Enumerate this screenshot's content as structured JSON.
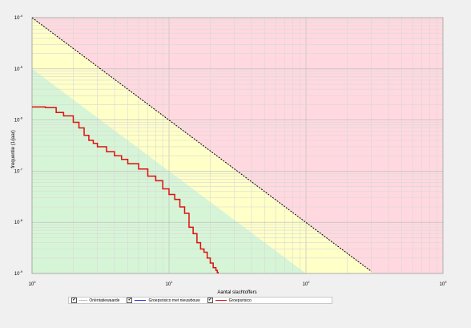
{
  "chart_data": {
    "type": "line",
    "title": "",
    "xlabel": "Aantal slachtoffers",
    "ylabel": "frequentie (1/jaar)",
    "x_scale": "log",
    "y_scale": "log",
    "xlim": [
      1,
      1000
    ],
    "ylim": [
      1e-09,
      0.0001
    ],
    "x_ticks": [
      {
        "base": "10",
        "exp": "0"
      },
      {
        "base": "10",
        "exp": "1"
      },
      {
        "base": "10",
        "exp": "2"
      },
      {
        "base": "10",
        "exp": "3"
      }
    ],
    "y_ticks": [
      {
        "base": "10",
        "exp": "-4"
      },
      {
        "base": "10",
        "exp": "-5"
      },
      {
        "base": "10",
        "exp": "-6"
      },
      {
        "base": "10",
        "exp": "-7"
      },
      {
        "base": "10",
        "exp": "-8"
      },
      {
        "base": "10",
        "exp": "-9"
      }
    ],
    "grid": true,
    "zones": [
      {
        "name": "red",
        "color": "#ffd9df"
      },
      {
        "name": "yellow",
        "color": "#ffffc8"
      },
      {
        "name": "green",
        "color": "#d6f5d6"
      }
    ],
    "zone_boundaries": {
      "upper": {
        "x": [
          1,
          300
        ],
        "y": [
          0.0001,
          1.1e-09
        ]
      },
      "lower": {
        "x": [
          1,
          100
        ],
        "y": [
          1e-05,
          1e-09
        ]
      }
    },
    "series": [
      {
        "name": "Oriëntatiewaarde",
        "color": "#000000",
        "style": "dashed",
        "x": [
          1,
          300
        ],
        "y": [
          0.0001,
          1.1e-09
        ]
      },
      {
        "name": "Groepsrisico met nieuwbouw",
        "color": "#3030d0",
        "style": "solid",
        "x": [
          1,
          1.25,
          1.5,
          1.7,
          2.0,
          2.2,
          2.4,
          2.6,
          2.8,
          3.0,
          3.5,
          4.0,
          4.5,
          5,
          6,
          7,
          8,
          9,
          10,
          11,
          12,
          13,
          14,
          15,
          16,
          17,
          18,
          19,
          20,
          21,
          22,
          22.5,
          22.8
        ],
        "y": [
          1.8e-06,
          1.75e-06,
          1.4e-06,
          1.2e-06,
          9e-07,
          7e-07,
          5e-07,
          4e-07,
          3.5e-07,
          3e-07,
          2.4e-07,
          2e-07,
          1.7e-07,
          1.4e-07,
          1.1e-07,
          8e-08,
          6.5e-08,
          4.5e-08,
          3.5e-08,
          2.8e-08,
          2e-08,
          1.5e-08,
          8e-09,
          6e-09,
          4e-09,
          3e-09,
          2.6e-09,
          2e-09,
          1.6e-09,
          1.3e-09,
          1.15e-09,
          1.05e-09,
          1e-09
        ]
      },
      {
        "name": "Groepsrisico",
        "color": "#e01010",
        "style": "solid",
        "x": [
          1,
          1.25,
          1.5,
          1.7,
          2.0,
          2.2,
          2.4,
          2.6,
          2.8,
          3.0,
          3.5,
          4.0,
          4.5,
          5,
          6,
          7,
          8,
          9,
          10,
          11,
          12,
          13,
          14,
          15,
          16,
          17,
          18,
          19,
          20,
          21,
          22,
          22.5,
          22.8
        ],
        "y": [
          1.8e-06,
          1.75e-06,
          1.4e-06,
          1.2e-06,
          9e-07,
          7e-07,
          5e-07,
          4e-07,
          3.5e-07,
          3e-07,
          2.4e-07,
          2e-07,
          1.7e-07,
          1.4e-07,
          1.1e-07,
          8e-08,
          6.5e-08,
          4.5e-08,
          3.5e-08,
          2.8e-08,
          2e-08,
          1.5e-08,
          8e-09,
          6e-09,
          4e-09,
          3e-09,
          2.6e-09,
          2e-09,
          1.6e-09,
          1.3e-09,
          1.15e-09,
          1.05e-09,
          1e-09
        ]
      }
    ]
  },
  "legend": {
    "items": [
      {
        "label": "Oriëntatiewaarde",
        "line": "- - - - -",
        "checked": "✔"
      },
      {
        "label": "Groepsrisico met nieuwbouw",
        "line": "",
        "checked": "✔"
      },
      {
        "label": "Groepsrisico",
        "line": "",
        "checked": "✔"
      }
    ]
  }
}
